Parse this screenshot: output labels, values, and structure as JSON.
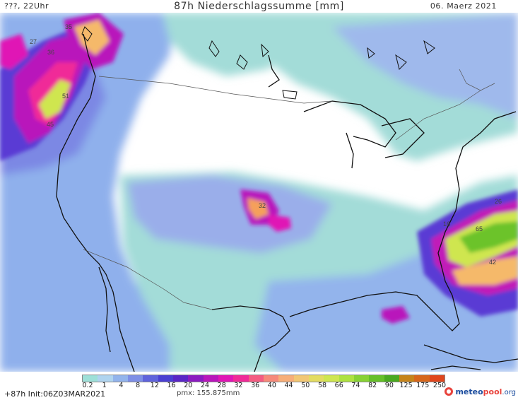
{
  "header": {
    "left": "???, 22Uhr",
    "title": "87h Niederschlagssumme [mm]",
    "date": "06. Maerz 2021"
  },
  "legend": {
    "swatches": [
      "#9ee0d8",
      "#b0d4ef",
      "#93b4ec",
      "#7e8fe6",
      "#5f63dc",
      "#4b3fd2",
      "#5a26c6",
      "#8b1bc0",
      "#b917bb",
      "#e017b5",
      "#f02b98",
      "#f45c82",
      "#f68a7a",
      "#f7ae78",
      "#f2c774",
      "#e3dc62",
      "#cfe650",
      "#aee240",
      "#88d234",
      "#66c029",
      "#4aa920",
      "#c6841a",
      "#d7671b",
      "#e0451c"
    ],
    "labels": [
      "0.2",
      "1",
      "4",
      "8",
      "12",
      "16",
      "20",
      "24",
      "28",
      "32",
      "36",
      "40",
      "44",
      "50",
      "58",
      "66",
      "74",
      "82",
      "90",
      "125",
      "175",
      "250"
    ]
  },
  "footer": {
    "init": "+87h Init:06Z03MAR2021",
    "pmx": "pmx: 155.875mm",
    "brand_a": "meteo",
    "brand_b": "pool",
    "brand_c": ".org"
  },
  "map_labels": {
    "pacific_values": [
      "35",
      "27",
      "36",
      "51",
      "45"
    ],
    "southwest_value": "32",
    "atlantic_values": [
      "26",
      "16",
      "65",
      "42"
    ]
  },
  "colors": {
    "land_white": "#ffffff",
    "light_precip": "#9ee0d8",
    "moderate_precip": "#8da9ea",
    "heavy_precip": "#5a3bd4",
    "very_heavy": "#c11ab8",
    "extreme": "#f2c774"
  }
}
